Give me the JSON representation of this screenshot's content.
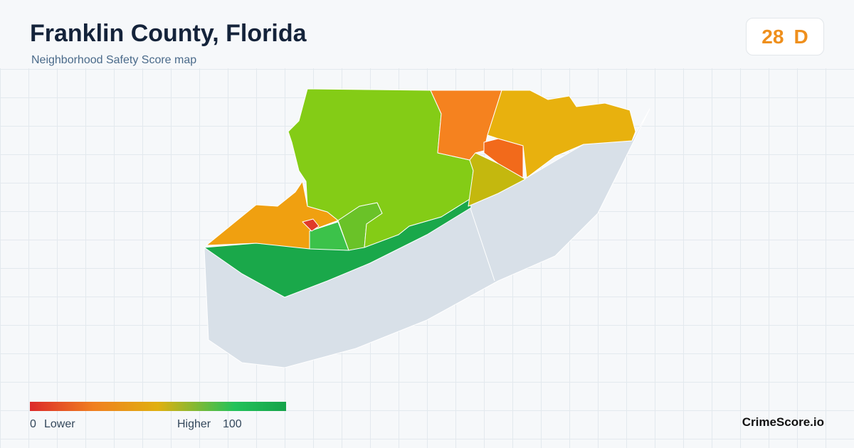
{
  "header": {
    "title": "Franklin County, Florida",
    "subtitle": "Neighborhood Safety Score map"
  },
  "score": {
    "value": 28,
    "grade": "D"
  },
  "legend": {
    "min": 0,
    "min_label": "Lower",
    "max_label": "Higher",
    "max": 100
  },
  "brand": "CrimeScore.io"
}
